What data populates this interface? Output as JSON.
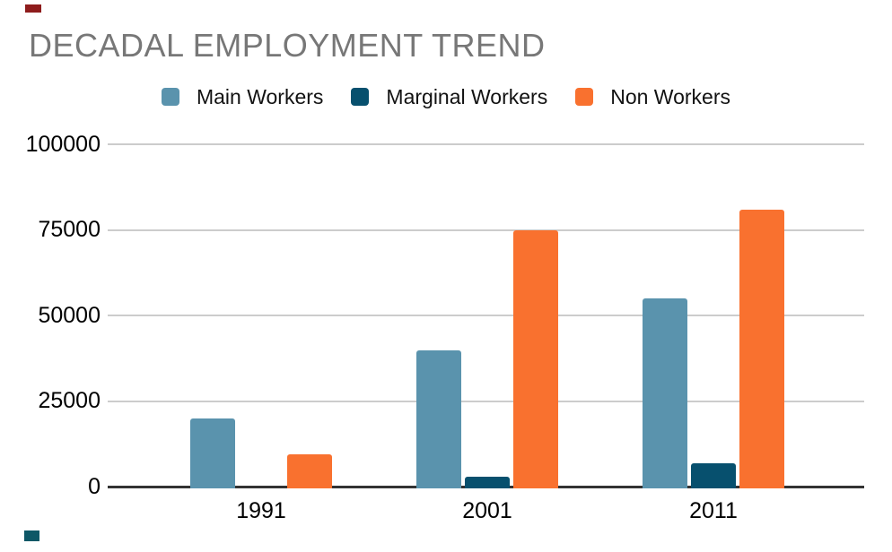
{
  "title": {
    "text": "DECADAL EMPLOYMENT TREND",
    "color": "#777777"
  },
  "chart_data": {
    "type": "bar",
    "title": "DECADAL EMPLOYMENT TREND",
    "categories": [
      "1991",
      "2001",
      "2011"
    ],
    "series": [
      {
        "name": "Main Workers",
        "color": "#5a93ad",
        "values": [
          20000,
          40000,
          55000
        ]
      },
      {
        "name": "Marginal Workers",
        "color": "#07506e",
        "values": [
          0,
          3000,
          7000
        ]
      },
      {
        "name": "Non Workers",
        "color": "#f9712f",
        "values": [
          9500,
          75000,
          81000
        ]
      }
    ],
    "xlabel": "",
    "ylabel": "",
    "ylim": [
      0,
      100000
    ],
    "yticks": [
      0,
      25000,
      50000,
      75000,
      100000
    ],
    "ytick_labels": [
      "0",
      "25000",
      "50000",
      "75000",
      "100000"
    ],
    "grid": true,
    "legend_position": "top"
  },
  "axis": {
    "grid_color": "#cccccc",
    "axis_line_color": "#333333",
    "tick_text_color": "#000000"
  },
  "corner_marks": {
    "top_left_color": "#8e1c1c",
    "bottom_left_color": "#0d5766"
  }
}
